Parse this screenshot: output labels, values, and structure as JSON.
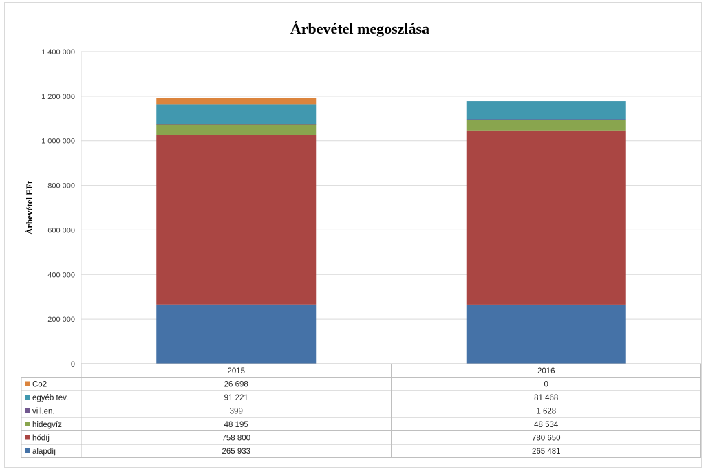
{
  "chart_data": {
    "type": "bar",
    "stacked": true,
    "title": "Árbevétel megoszlása",
    "ylabel": "Árbevétel EFt",
    "xlabel": "",
    "ylim": [
      0,
      1400000
    ],
    "yticks": [
      0,
      200000,
      400000,
      600000,
      800000,
      1000000,
      1200000,
      1400000
    ],
    "ytick_labels": [
      "0",
      "200 000",
      "400 000",
      "600 000",
      "800 000",
      "1 000 000",
      "1 200 000",
      "1 400 000"
    ],
    "categories": [
      "2015",
      "2016"
    ],
    "grid": true,
    "legend": "data-table-left",
    "series": [
      {
        "name": "alapdíj",
        "color": "#4572a7",
        "values": [
          265933,
          265481
        ],
        "labels": [
          "265 933",
          "265 481"
        ]
      },
      {
        "name": "hődíj",
        "color": "#aa4643",
        "values": [
          758800,
          780650
        ],
        "labels": [
          "758 800",
          "780 650"
        ]
      },
      {
        "name": "hidegvíz",
        "color": "#89a54e",
        "values": [
          48195,
          48534
        ],
        "labels": [
          "48 195",
          "48 534"
        ]
      },
      {
        "name": "vill.en.",
        "color": "#71588f",
        "values": [
          399,
          1628
        ],
        "labels": [
          "399",
          "1 628"
        ]
      },
      {
        "name": "egyéb tev.",
        "color": "#4198af",
        "values": [
          91221,
          81468
        ],
        "labels": [
          "91 221",
          "81 468"
        ]
      },
      {
        "name": "Co2",
        "color": "#db843d",
        "values": [
          26698,
          0
        ],
        "labels": [
          "26 698",
          "0"
        ]
      }
    ]
  }
}
